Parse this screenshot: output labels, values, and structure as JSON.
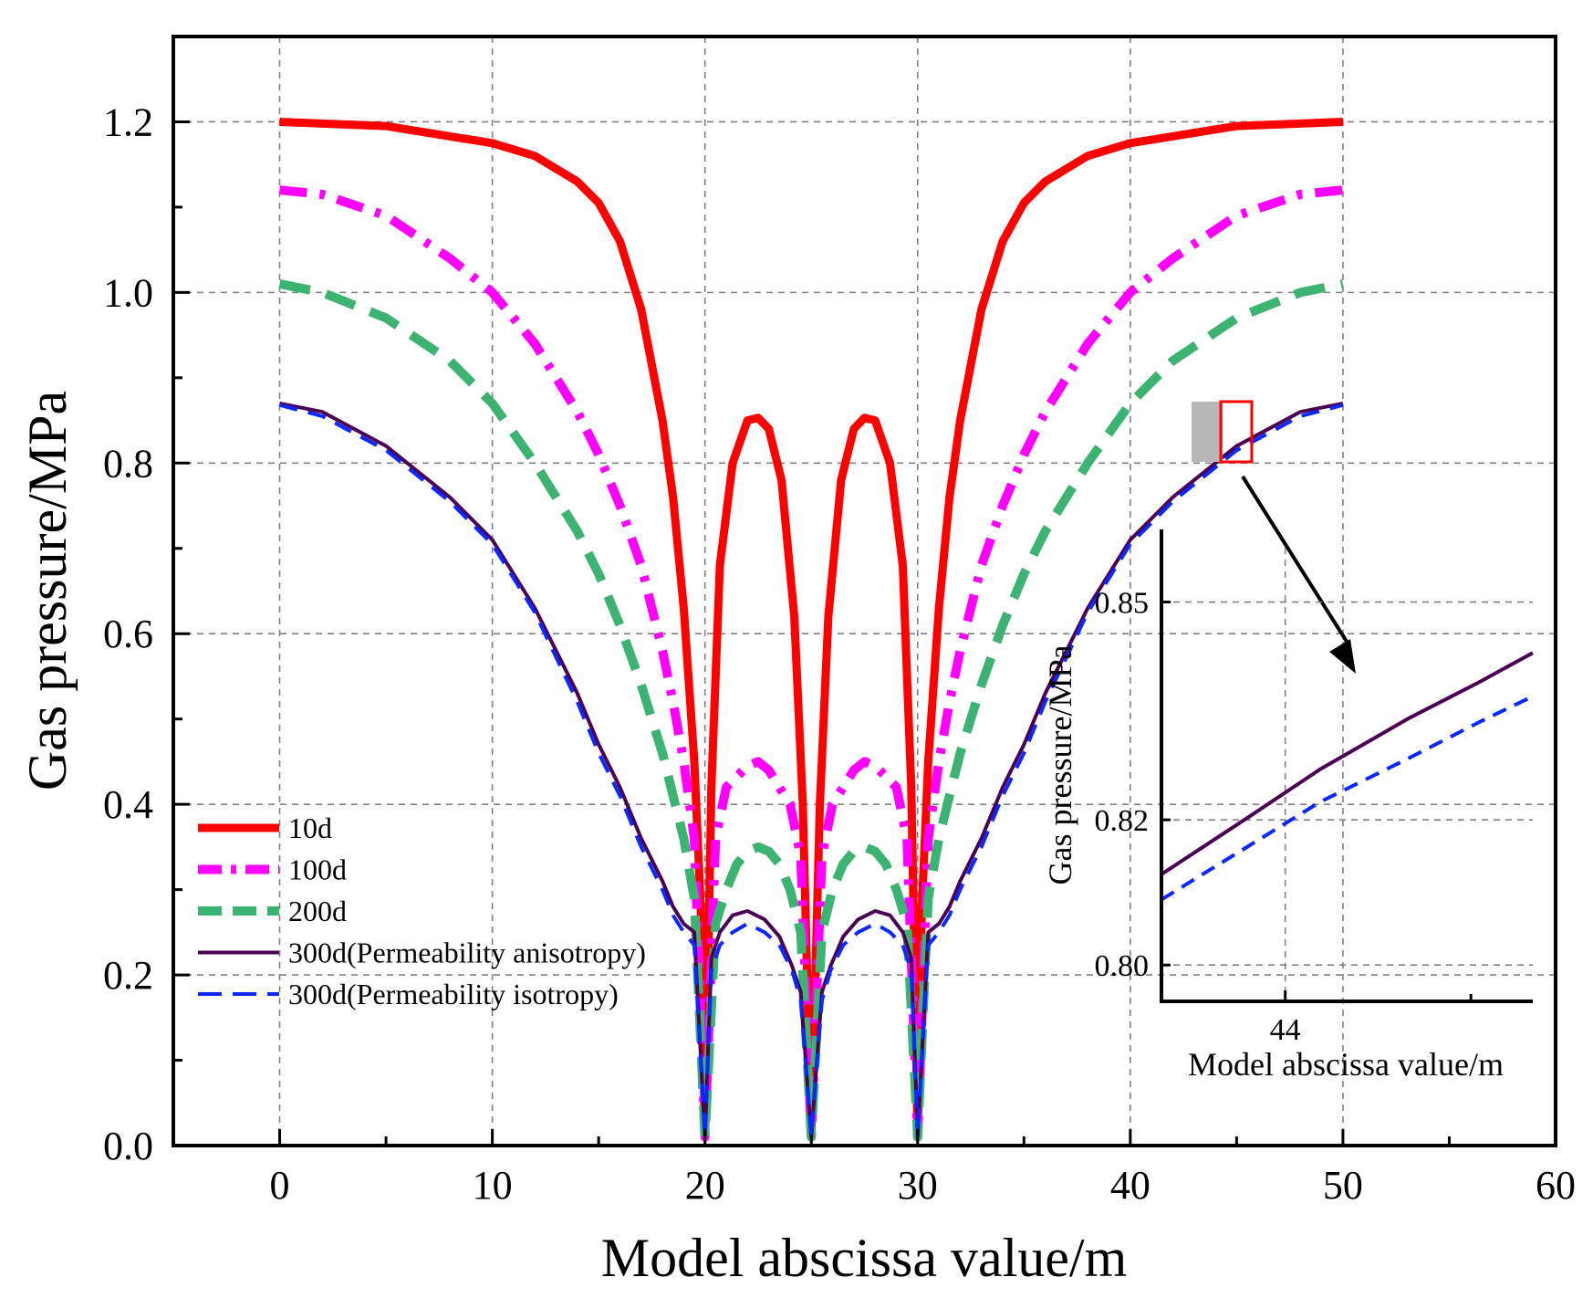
{
  "chart_data": {
    "type": "line",
    "title": "",
    "xlabel": "Model abscissa value/m",
    "ylabel": "Gas pressure/MPa",
    "xlim": [
      -5,
      60
    ],
    "ylim": [
      0,
      1.3
    ],
    "x_ticks": [
      "0",
      "10",
      "20",
      "30",
      "40",
      "50",
      "60"
    ],
    "y_ticks": [
      "0.0",
      "0.2",
      "0.4",
      "0.6",
      "0.8",
      "1.0",
      "1.2"
    ],
    "grid": true,
    "legend_position": "bottom-left",
    "series": [
      {
        "name": "10d",
        "color": "#ff0000",
        "style": "solid",
        "x": [
          0,
          5,
          10,
          12,
          14,
          15,
          16,
          17,
          18,
          18.5,
          19,
          19.5,
          19.8,
          20,
          20.3,
          20.7,
          21.3,
          22,
          22.5,
          23,
          23.6,
          24.2,
          24.6,
          25,
          25.4,
          25.8,
          26.4,
          27,
          27.5,
          28,
          28.7,
          29.3,
          29.7,
          30,
          30.2,
          30.5,
          31,
          31.5,
          32,
          33,
          34,
          35,
          36,
          38,
          40,
          45,
          50
        ],
        "y": [
          1.2,
          1.195,
          1.175,
          1.16,
          1.13,
          1.105,
          1.06,
          0.98,
          0.85,
          0.76,
          0.63,
          0.45,
          0.28,
          0.01,
          0.42,
          0.68,
          0.8,
          0.85,
          0.853,
          0.84,
          0.78,
          0.62,
          0.4,
          0.01,
          0.4,
          0.62,
          0.78,
          0.84,
          0.853,
          0.85,
          0.8,
          0.68,
          0.42,
          0.01,
          0.28,
          0.45,
          0.63,
          0.76,
          0.85,
          0.98,
          1.06,
          1.105,
          1.13,
          1.16,
          1.175,
          1.195,
          1.2
        ]
      },
      {
        "name": "100d",
        "color": "#ff00ff",
        "style": "dashdot",
        "x": [
          0,
          2,
          5,
          8,
          10,
          12,
          14,
          15,
          16,
          17,
          18,
          18.5,
          19,
          19.5,
          20,
          20.5,
          21,
          22,
          22.5,
          23,
          24,
          24.5,
          25,
          25.5,
          26,
          27,
          27.5,
          28,
          29,
          29.5,
          30,
          30.5,
          31,
          31.5,
          32,
          33,
          34,
          35,
          36,
          38,
          40,
          42,
          45,
          48,
          50
        ],
        "y": [
          1.12,
          1.115,
          1.09,
          1.04,
          1.0,
          0.94,
          0.86,
          0.81,
          0.75,
          0.68,
          0.58,
          0.52,
          0.45,
          0.36,
          0.01,
          0.36,
          0.42,
          0.445,
          0.45,
          0.44,
          0.4,
          0.34,
          0.01,
          0.34,
          0.4,
          0.44,
          0.45,
          0.445,
          0.42,
          0.36,
          0.01,
          0.36,
          0.45,
          0.52,
          0.58,
          0.68,
          0.75,
          0.81,
          0.86,
          0.94,
          1.0,
          1.04,
          1.09,
          1.115,
          1.12
        ]
      },
      {
        "name": "200d",
        "color": "#3cb371",
        "style": "dashed",
        "x": [
          0,
          2,
          5,
          8,
          10,
          12,
          14,
          15,
          16,
          17,
          18,
          18.5,
          19,
          19.5,
          20,
          20.5,
          21,
          21.5,
          22,
          22.5,
          23,
          23.5,
          24,
          24.5,
          25,
          25.5,
          26,
          26.5,
          27,
          27.5,
          28,
          28.5,
          29,
          29.5,
          30,
          30.5,
          31,
          31.5,
          32,
          33,
          34,
          35,
          36,
          38,
          40,
          42,
          45,
          48,
          50
        ],
        "y": [
          1.01,
          1.0,
          0.97,
          0.92,
          0.87,
          0.8,
          0.72,
          0.67,
          0.61,
          0.54,
          0.46,
          0.41,
          0.36,
          0.29,
          0.01,
          0.26,
          0.3,
          0.33,
          0.345,
          0.35,
          0.345,
          0.33,
          0.3,
          0.25,
          0.01,
          0.25,
          0.3,
          0.33,
          0.345,
          0.35,
          0.345,
          0.33,
          0.3,
          0.26,
          0.01,
          0.29,
          0.36,
          0.41,
          0.46,
          0.54,
          0.61,
          0.67,
          0.72,
          0.8,
          0.87,
          0.92,
          0.97,
          1.0,
          1.01
        ]
      },
      {
        "name": "300d(Permeability anisotropy)",
        "color": "#4b0055",
        "style": "solid",
        "x": [
          0,
          2,
          5,
          8,
          10,
          12,
          14,
          15,
          16,
          17,
          18,
          18.5,
          19,
          19.5,
          20,
          20.3,
          20.7,
          21.3,
          22,
          22.8,
          23.5,
          24.1,
          24.5,
          25,
          25.5,
          25.9,
          26.5,
          27.2,
          28,
          28.7,
          29.3,
          29.7,
          30,
          30.5,
          31,
          31.5,
          32,
          33,
          34,
          35,
          36,
          38,
          40,
          42,
          45,
          48,
          50
        ],
        "y": [
          0.87,
          0.86,
          0.82,
          0.76,
          0.71,
          0.63,
          0.53,
          0.47,
          0.42,
          0.36,
          0.31,
          0.28,
          0.26,
          0.25,
          0.01,
          0.22,
          0.25,
          0.27,
          0.275,
          0.265,
          0.245,
          0.21,
          0.18,
          0.01,
          0.18,
          0.21,
          0.245,
          0.265,
          0.275,
          0.27,
          0.25,
          0.22,
          0.01,
          0.25,
          0.26,
          0.28,
          0.31,
          0.36,
          0.42,
          0.47,
          0.53,
          0.63,
          0.71,
          0.76,
          0.82,
          0.86,
          0.87
        ]
      },
      {
        "name": "300d(Permeability isotropy)",
        "color": "#0a28ff",
        "style": "dashed",
        "x": [
          0,
          2,
          5,
          8,
          10,
          12,
          14,
          15,
          16,
          17,
          18,
          18.5,
          19,
          19.5,
          20,
          20.3,
          20.7,
          21.3,
          22,
          22.8,
          23.5,
          24.1,
          24.5,
          25,
          25.5,
          25.9,
          26.5,
          27.2,
          28,
          28.7,
          29.3,
          29.7,
          30,
          30.5,
          31,
          31.5,
          32,
          33,
          34,
          35,
          36,
          38,
          40,
          42,
          45,
          48,
          50
        ],
        "y": [
          0.868,
          0.855,
          0.815,
          0.755,
          0.705,
          0.625,
          0.52,
          0.46,
          0.41,
          0.35,
          0.3,
          0.27,
          0.25,
          0.235,
          0.01,
          0.205,
          0.235,
          0.25,
          0.26,
          0.25,
          0.235,
          0.205,
          0.17,
          0.01,
          0.17,
          0.205,
          0.235,
          0.25,
          0.26,
          0.25,
          0.235,
          0.205,
          0.01,
          0.235,
          0.25,
          0.27,
          0.3,
          0.35,
          0.41,
          0.46,
          0.52,
          0.625,
          0.705,
          0.755,
          0.815,
          0.855,
          0.868
        ]
      }
    ],
    "inset": {
      "xlabel": "Model abscissa value/m",
      "ylabel": "Gas pressure/MPa",
      "xlim": [
        43.3,
        45.4
      ],
      "ylim": [
        0.795,
        0.86
      ],
      "x_ticks": [
        "44"
      ],
      "y_ticks": [
        "0.80",
        "0.82",
        "0.85"
      ],
      "series": [
        {
          "name": "300d(Permeability anisotropy)",
          "color": "#4b0055",
          "style": "solid",
          "x": [
            43.3,
            43.8,
            44.2,
            44.7,
            45.1,
            45.4
          ],
          "y": [
            0.8125,
            0.8205,
            0.827,
            0.834,
            0.839,
            0.843
          ]
        },
        {
          "name": "300d(Permeability isotropy)",
          "color": "#0a28ff",
          "style": "dashed",
          "x": [
            43.3,
            43.8,
            44.2,
            44.7,
            45.1,
            45.4
          ],
          "y": [
            0.809,
            0.8165,
            0.8225,
            0.8285,
            0.8335,
            0.837
          ]
        }
      ]
    }
  }
}
